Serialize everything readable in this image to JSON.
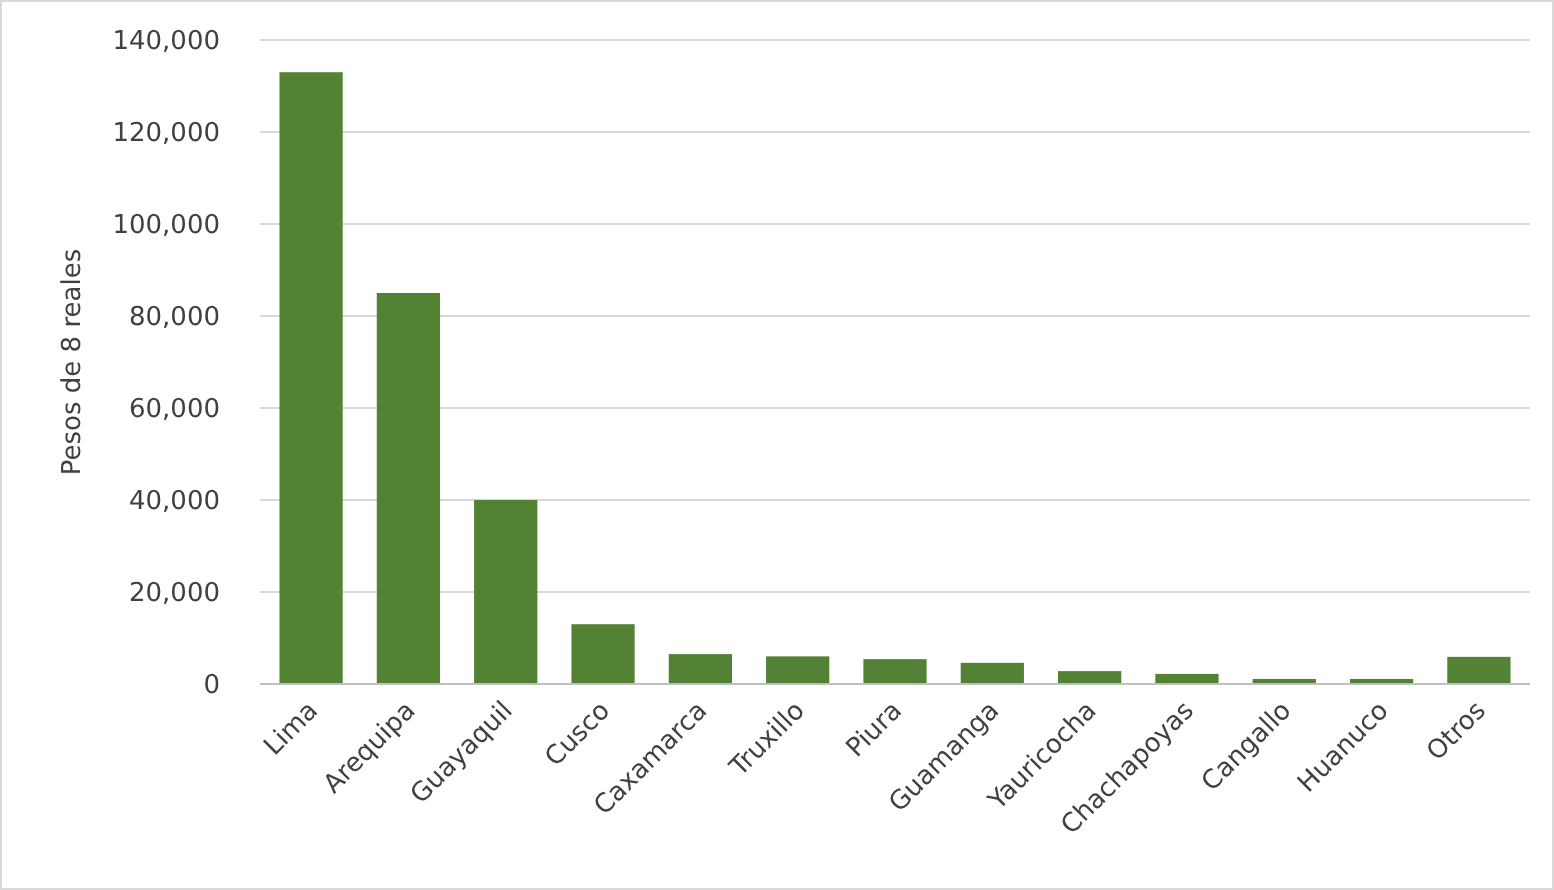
{
  "chart_data": {
    "type": "bar",
    "ylabel": "Pesos de 8 reales",
    "categories": [
      "Lima",
      "Arequipa",
      "Guayaquil",
      "Cusco",
      "Caxamarca",
      "Truxillo",
      "Piura",
      "Guamanga",
      "Yauricocha",
      "Chachapoyas",
      "Cangallo",
      "Huanuco",
      "Otros"
    ],
    "values": [
      133000,
      85000,
      40000,
      13000,
      6500,
      6000,
      5400,
      4600,
      2800,
      2200,
      1100,
      1100,
      5900
    ],
    "color": "#548235",
    "ylim": [
      0,
      140000
    ],
    "yticks": [
      {
        "value": 0,
        "label": "0"
      },
      {
        "value": 20000,
        "label": "20,000"
      },
      {
        "value": 40000,
        "label": "40,000"
      },
      {
        "value": 60000,
        "label": "60,000"
      },
      {
        "value": 80000,
        "label": "80,000"
      },
      {
        "value": 100000,
        "label": "100,000"
      },
      {
        "value": 120000,
        "label": "120,000"
      },
      {
        "value": 140000,
        "label": "140,000"
      }
    ],
    "grid": "y"
  }
}
